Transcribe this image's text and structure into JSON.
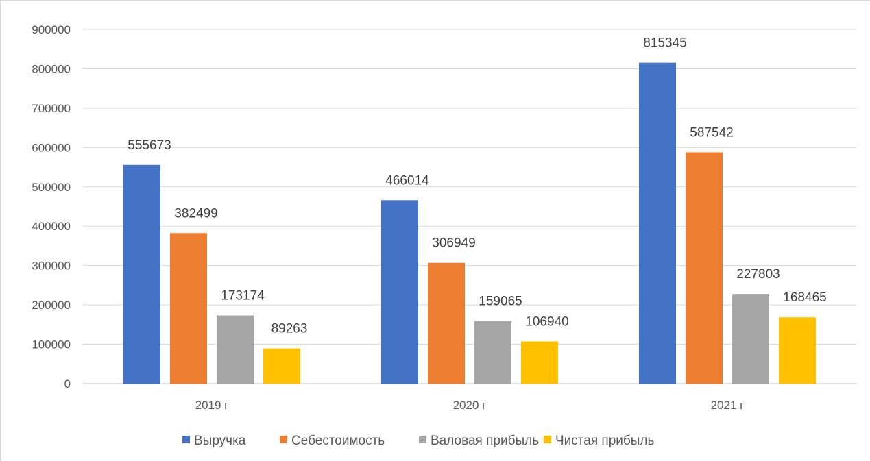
{
  "chart_data": {
    "type": "bar",
    "categories": [
      "2019 г",
      "2020 г",
      "2021 г"
    ],
    "series": [
      {
        "name": "Выручка",
        "color": "#4472c4",
        "values": [
          555673,
          466014,
          815345
        ]
      },
      {
        "name": "Себестоимость",
        "color": "#ed7d31",
        "values": [
          382499,
          306949,
          587542
        ]
      },
      {
        "name": "Валовая прибыль",
        "color": "#a5a5a5",
        "values": [
          173174,
          159065,
          227803
        ]
      },
      {
        "name": "Чистая прибыль",
        "color": "#ffc000",
        "values": [
          89263,
          106940,
          168465
        ]
      }
    ],
    "yticks": [
      "0",
      "100000",
      "200000",
      "300000",
      "400000",
      "500000",
      "600000",
      "700000",
      "800000",
      "900000"
    ],
    "ylim": [
      0,
      900000
    ],
    "grid": true,
    "legend": "bottom",
    "data_labels": true
  }
}
